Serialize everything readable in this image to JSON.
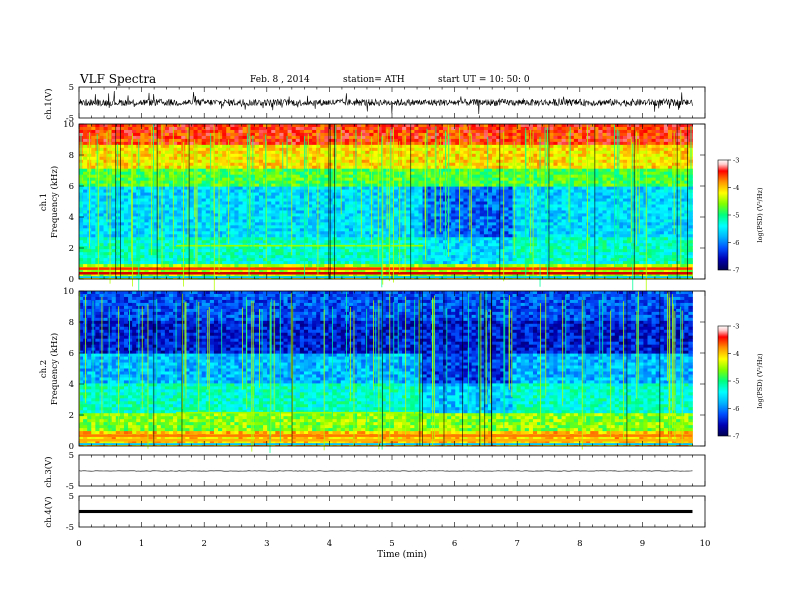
{
  "header": {
    "title": "VLF Spectra",
    "date": "Feb. 8 , 2014",
    "station": "station= ATH",
    "start": "start UT = 10: 50: 0"
  },
  "chart_data": [
    {
      "type": "line",
      "name": "ch1-waveform",
      "ylabel": "ch.1(V)",
      "yticks": [
        "5",
        "-5"
      ],
      "ylim": [
        -5,
        5
      ],
      "xlim": [
        0,
        10
      ],
      "data_end_min": 9.8
    },
    {
      "type": "heatmap",
      "name": "ch1-spectrogram",
      "ylabel": "ch.1\nFrequency (kHz)",
      "yticks": [
        "10",
        "8",
        "6",
        "4",
        "2",
        "0"
      ],
      "ylim": [
        0,
        10
      ],
      "xlim": [
        0,
        10
      ],
      "colorbar": {
        "label": "log(PSD) (V²/Hz)",
        "ticks": [
          "-3",
          "-4",
          "-5",
          "-6",
          "-7"
        ],
        "range": [
          -7,
          -3
        ]
      },
      "features": {
        "quiet_interval_min": [
          5.5,
          6.9
        ],
        "line_2khz_interval_min": [
          1.55,
          5.5
        ]
      }
    },
    {
      "type": "heatmap",
      "name": "ch2-spectrogram",
      "ylabel": "ch.2\nFrequency (kHz)",
      "yticks": [
        "10",
        "8",
        "6",
        "4",
        "2",
        "0"
      ],
      "ylim": [
        0,
        10
      ],
      "xlim": [
        0,
        10
      ],
      "colorbar": {
        "label": "log(PSD) (V²/Hz)",
        "ticks": [
          "-3",
          "-4",
          "-5",
          "-6",
          "-7"
        ],
        "range": [
          -7,
          -3
        ]
      },
      "features": {
        "quiet_interval_min": [
          5.5,
          6.9
        ],
        "line_2khz_interval_min": [
          1.55,
          5.5
        ]
      }
    },
    {
      "type": "line",
      "name": "ch3-waveform",
      "ylabel": "ch.3(V)",
      "yticks": [
        "5",
        "-5"
      ],
      "ylim": [
        -5,
        5
      ],
      "xlim": [
        0,
        10
      ]
    },
    {
      "type": "line",
      "name": "ch4-waveform",
      "ylabel": "ch.4(V)",
      "yticks": [
        "5",
        "-5"
      ],
      "ylim": [
        -5,
        5
      ],
      "xlim": [
        0,
        10
      ]
    }
  ],
  "x_axis": {
    "label": "Time  (min)",
    "ticks": [
      "0",
      "1",
      "2",
      "3",
      "4",
      "5",
      "6",
      "7",
      "8",
      "9",
      "10"
    ]
  },
  "colors": {
    "background": "#ffffff",
    "colormap": [
      "#000050",
      "#0000b4",
      "#0050ff",
      "#00b4ff",
      "#00ffff",
      "#00ff7f",
      "#7fff00",
      "#ffff00",
      "#ff9600",
      "#ff0000",
      "#ffc8c8",
      "#ffffff"
    ]
  }
}
